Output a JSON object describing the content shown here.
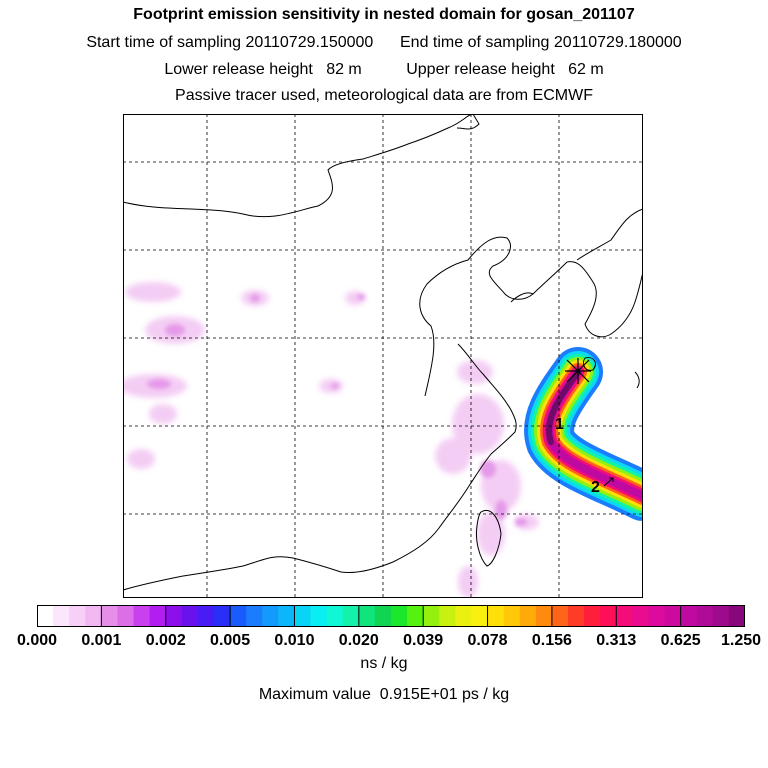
{
  "header": {
    "title": "Footprint emission sensitivity in nested domain for gosan_201107",
    "start_label": "Start time of sampling 20110729.150000",
    "end_label": "End time of sampling 20110729.180000",
    "lower_label": "Lower release height   82 m",
    "upper_label": "Upper release height   62 m",
    "tracer_note": "Passive tracer used, meteorological data are from ECMWF"
  },
  "map": {
    "markers": [
      {
        "label": "1"
      },
      {
        "label": "2"
      }
    ]
  },
  "colorbar": {
    "ticks": [
      "0.000",
      "0.001",
      "0.002",
      "0.005",
      "0.010",
      "0.020",
      "0.039",
      "0.078",
      "0.156",
      "0.313",
      "0.625",
      "1.250"
    ],
    "colors": [
      "#ffffff",
      "#fbe6fb",
      "#f6d0f6",
      "#f1b8f1",
      "#e58fe9",
      "#dc6ee8",
      "#c940ee",
      "#b21df2",
      "#8d10ec",
      "#6a12ee",
      "#4a1cf5",
      "#2a2ff8",
      "#1a5cfb",
      "#1b7dfd",
      "#1499fd",
      "#0bb6fb",
      "#08d4f6",
      "#08eef2",
      "#0ff7d4",
      "#12f2a8",
      "#10e47c",
      "#10d452",
      "#1be82a",
      "#55f210",
      "#95f010",
      "#c8f010",
      "#ecf010",
      "#faf010",
      "#ffe008",
      "#ffc808",
      "#ffaa08",
      "#ff8a10",
      "#ff6418",
      "#ff3c28",
      "#ff1e3c",
      "#ff0f5a",
      "#f40c78",
      "#ea0c8f",
      "#dc0a9e",
      "#cc0a9e",
      "#bf0aa2",
      "#b00a98",
      "#9d0a8c",
      "#88087c"
    ],
    "unit": "ns / kg"
  },
  "max_value": "Maximum value  0.915E+01 ps / kg"
}
